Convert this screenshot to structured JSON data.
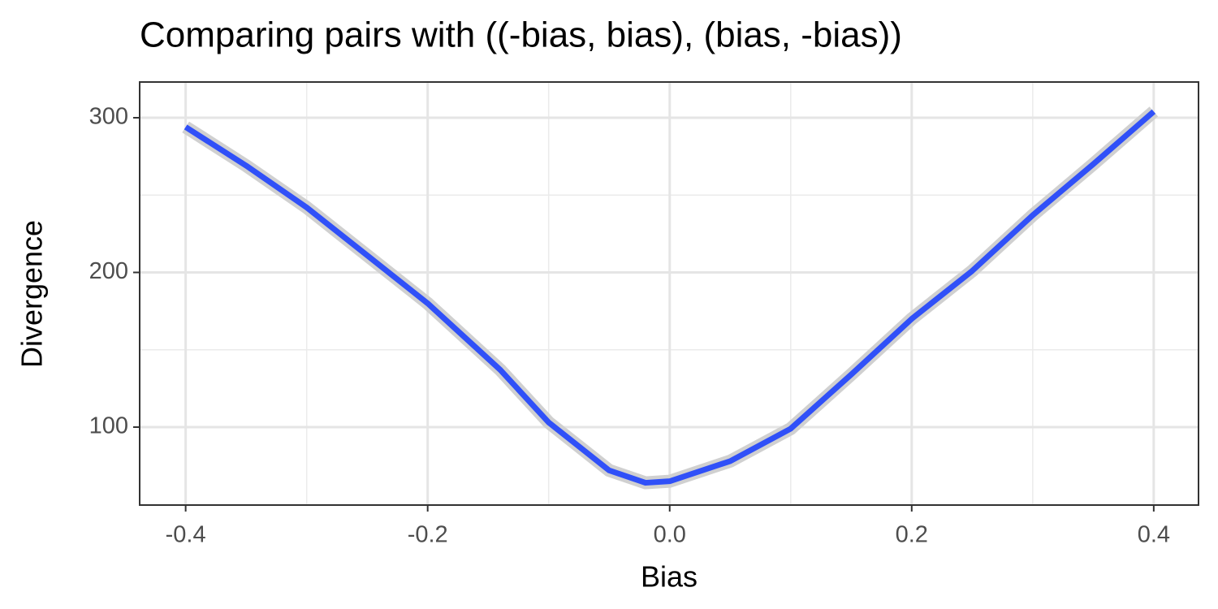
{
  "chart_data": {
    "type": "line",
    "title": "Comparing pairs with ((-bias, bias), (bias, -bias))",
    "x_label": "Bias",
    "y_label": "Divergence",
    "x": [
      -0.4,
      -0.35,
      -0.3,
      -0.25,
      -0.2,
      -0.14,
      -0.1,
      -0.05,
      -0.02,
      0,
      0.05,
      0.1,
      0.15,
      0.2,
      0.25,
      0.3,
      0.35,
      0.4
    ],
    "series": [
      {
        "color": "#3050f8",
        "values": [
          294,
          269,
          242,
          211,
          180,
          137,
          103,
          72,
          64,
          65,
          78,
          99,
          134,
          170,
          201,
          237,
          270,
          304
        ]
      }
    ],
    "xlim": [
      -0.438,
      0.437
    ],
    "ylim": [
      49.6,
      323.1
    ],
    "xticks": [
      -0.4,
      -0.2,
      {
        "value": 0,
        "label": "0.0"
      },
      0.2,
      0.4
    ],
    "yticks": [
      100,
      200,
      300
    ],
    "grid": true
  }
}
